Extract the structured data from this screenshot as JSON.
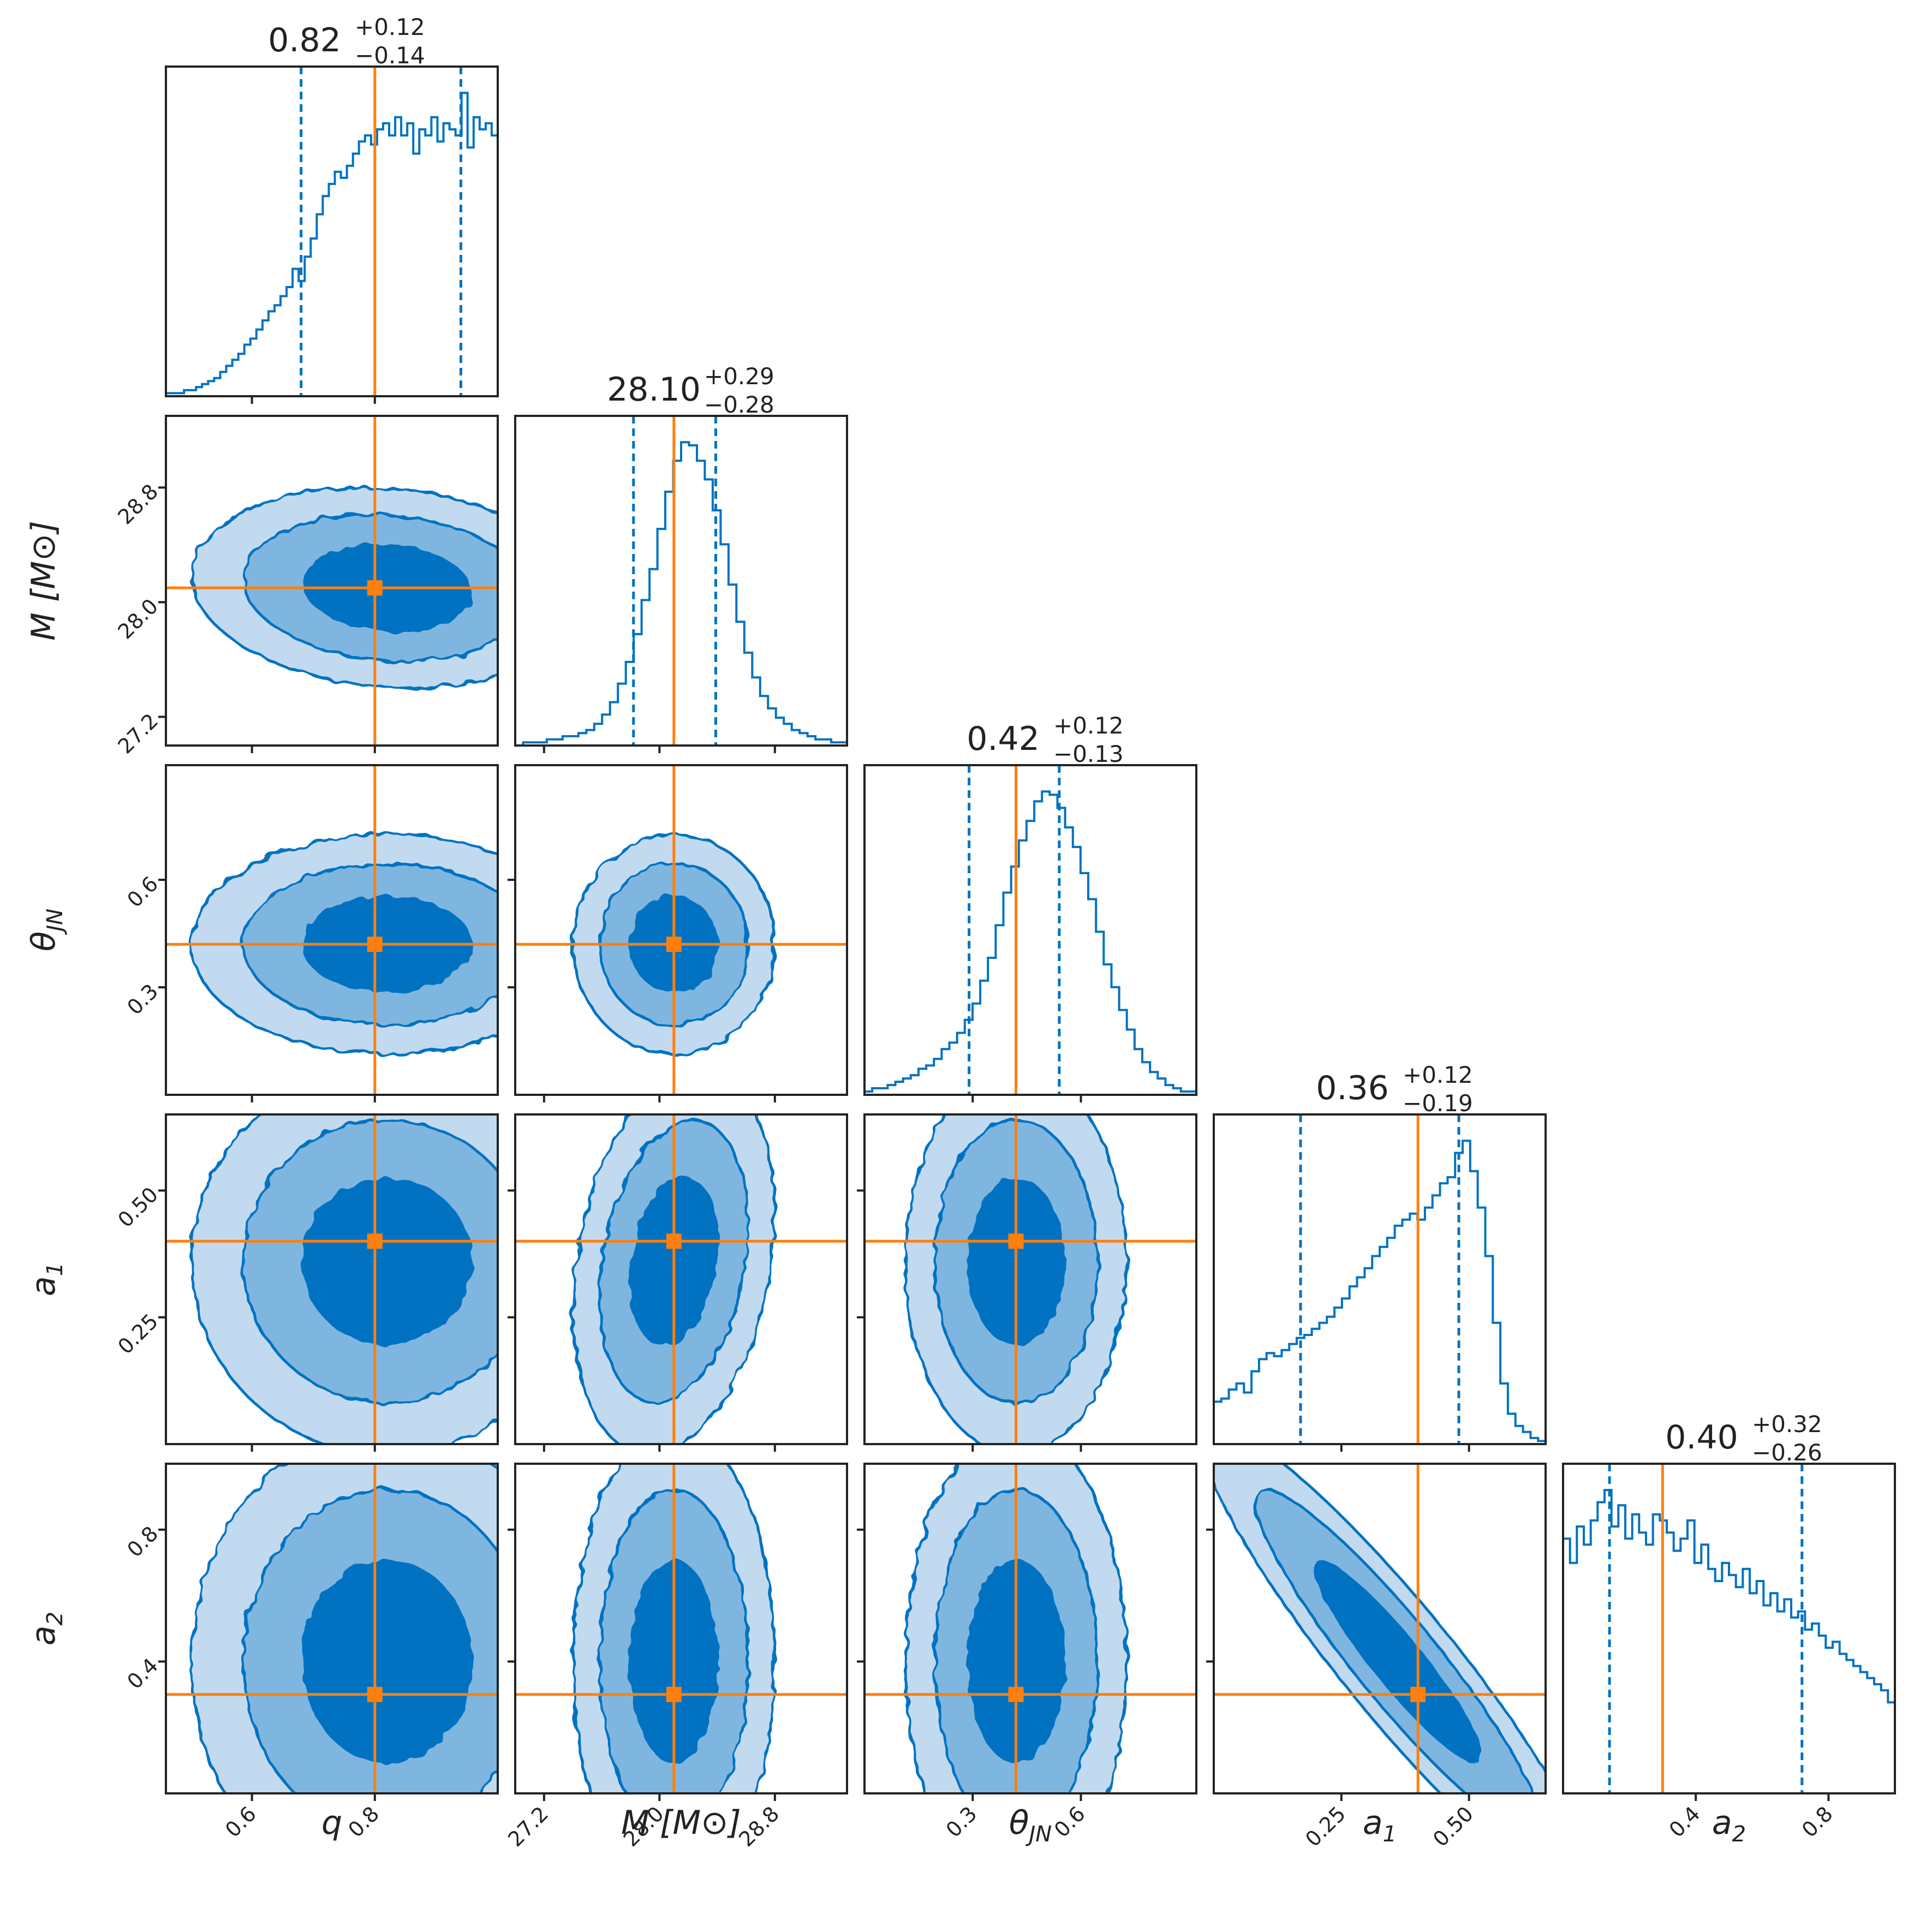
{
  "colors": {
    "posterior": "#0072c1",
    "truth": "#ff7f0e",
    "contour_fill_inner": "#0072c1",
    "contour_fill_mid": "#7fb6e0",
    "contour_fill_outer": "#c2daf0",
    "frame": "#222222"
  },
  "chart_data": {
    "type": "corner",
    "parameters": [
      {
        "key": "q",
        "label": "q",
        "range": [
          0.46,
          1.0
        ],
        "ticks": [
          0.6,
          0.8
        ],
        "tick_labels": [
          "0.6",
          "0.8"
        ],
        "median": 0.82,
        "plus": 0.12,
        "minus": 0.14,
        "title_main": "0.82",
        "title_plus": "+0.12",
        "title_minus": "−0.14",
        "truth": 0.8,
        "ci": [
          0.68,
          0.94
        ],
        "hist": [
          1,
          1,
          1,
          2,
          2,
          3,
          4,
          5,
          6,
          8,
          10,
          12,
          14,
          17,
          19,
          22,
          25,
          28,
          30,
          33,
          36,
          42,
          38,
          46,
          52,
          60,
          66,
          70,
          74,
          72,
          76,
          80,
          84,
          86,
          83,
          88,
          90,
          86,
          92,
          86,
          90,
          80,
          88,
          86,
          92,
          84,
          90,
          88,
          86,
          100,
          82,
          92,
          88,
          90,
          86
        ]
      },
      {
        "key": "M",
        "label": "M [M⊙]",
        "range": [
          27.0,
          29.3
        ],
        "ticks": [
          27.2,
          28.0,
          28.8
        ],
        "tick_labels": [
          "27.2",
          "28.0",
          "28.8"
        ],
        "median": 28.1,
        "plus": 0.29,
        "minus": 0.28,
        "title_main": "28.10",
        "title_plus": "+0.29",
        "title_minus": "−0.28",
        "truth": 28.1,
        "ci": [
          27.82,
          28.39
        ],
        "hist": [
          0,
          1,
          1,
          1,
          2,
          2,
          3,
          3,
          4,
          5,
          7,
          10,
          14,
          20,
          27,
          36,
          47,
          57,
          70,
          82,
          92,
          98,
          97,
          92,
          86,
          76,
          65,
          52,
          40,
          30,
          22,
          16,
          12,
          9,
          7,
          5,
          4,
          3,
          2,
          2,
          1,
          1
        ]
      },
      {
        "key": "theta",
        "label": "θJN",
        "range": [
          0.0,
          0.92
        ],
        "ticks": [
          0.3,
          0.6
        ],
        "tick_labels": [
          "0.3",
          "0.6"
        ],
        "median": 0.42,
        "plus": 0.12,
        "minus": 0.13,
        "title_main": "0.42",
        "title_plus": "+0.12",
        "title_minus": "−0.13",
        "truth": 0.42,
        "ci": [
          0.29,
          0.54
        ],
        "hist": [
          1,
          2,
          2,
          3,
          4,
          5,
          6,
          8,
          9,
          11,
          14,
          16,
          19,
          23,
          28,
          35,
          42,
          52,
          62,
          70,
          78,
          84,
          90,
          93,
          92,
          88,
          82,
          76,
          68,
          60,
          50,
          40,
          33,
          26,
          20,
          14,
          10,
          7,
          5,
          3,
          2,
          1,
          1
        ]
      },
      {
        "key": "a1",
        "label": "a1",
        "range": [
          0.0,
          0.65
        ],
        "ticks": [
          0.25,
          0.5
        ],
        "tick_labels": [
          "0.25",
          "0.50"
        ],
        "median": 0.36,
        "plus": 0.12,
        "minus": 0.19,
        "title_main": "0.36",
        "title_plus": "+0.12",
        "title_minus": "−0.19",
        "truth": 0.4,
        "ci": [
          0.17,
          0.48
        ],
        "hist": [
          14,
          15,
          18,
          20,
          17,
          24,
          28,
          30,
          29,
          31,
          33,
          35,
          36,
          38,
          40,
          42,
          45,
          48,
          52,
          55,
          58,
          62,
          65,
          68,
          72,
          74,
          76,
          74,
          78,
          82,
          86,
          88,
          96,
          100,
          90,
          78,
          62,
          40,
          20,
          10,
          6,
          4,
          2,
          1
        ]
      },
      {
        "key": "a2",
        "label": "a2",
        "range": [
          0.0,
          1.0
        ],
        "ticks": [
          0.4,
          0.8
        ],
        "tick_labels": [
          "0.4",
          "0.8"
        ],
        "median": 0.4,
        "plus": 0.32,
        "minus": 0.26,
        "title_main": "0.40",
        "title_plus": "+0.32",
        "title_minus": "−0.26",
        "truth": 0.3,
        "ci": [
          0.14,
          0.72
        ],
        "hist": [
          84,
          76,
          88,
          82,
          90,
          96,
          100,
          88,
          95,
          84,
          92,
          86,
          82,
          92,
          90,
          86,
          80,
          84,
          90,
          76,
          82,
          74,
          70,
          76,
          72,
          68,
          74,
          66,
          70,
          62,
          66,
          60,
          64,
          58,
          60,
          54,
          56,
          52,
          48,
          50,
          46,
          44,
          42,
          40,
          38,
          36,
          34,
          30
        ]
      }
    ]
  }
}
